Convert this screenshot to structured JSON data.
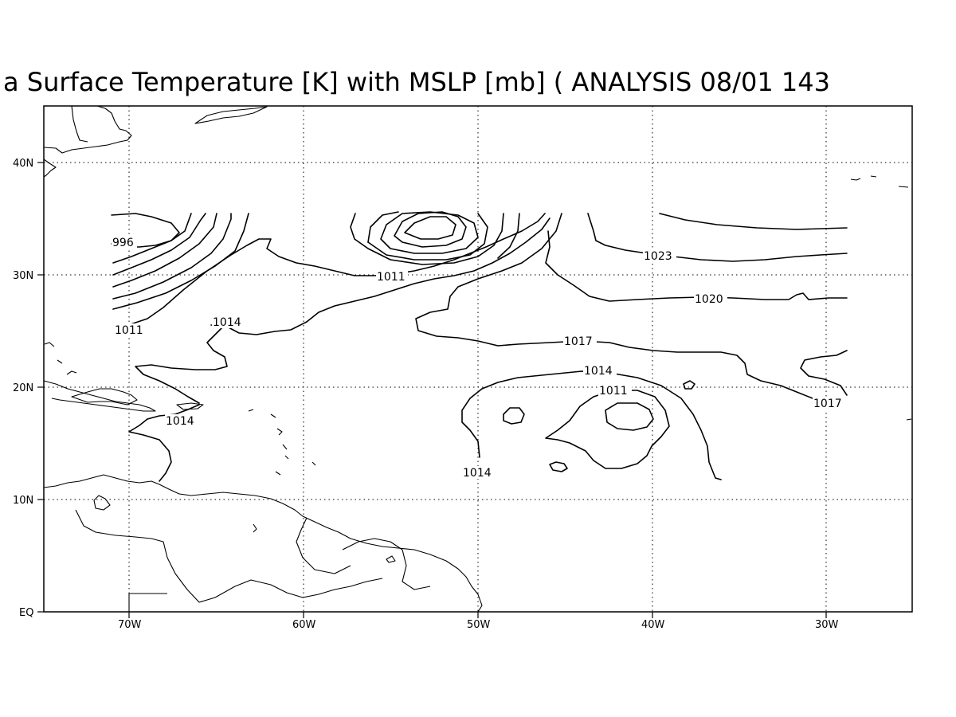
{
  "title": "a Surface Temperature [K] with MSLP [mb] ( ANALYSIS 08/01 143",
  "axes": {
    "x_ticks": [
      "70W",
      "60W",
      "50W",
      "40W",
      "30W"
    ],
    "y_ticks": [
      "EQ",
      "10N",
      "20N",
      "30N",
      "40N"
    ]
  },
  "contour_labels": [
    {
      "id": "996",
      "text": "996"
    },
    {
      "id": "1011a",
      "text": "1011"
    },
    {
      "id": "1011b",
      "text": "1011"
    },
    {
      "id": "1011c",
      "text": "1011"
    },
    {
      "id": "1014a",
      "text": "1014"
    },
    {
      "id": "1014b",
      "text": "1014"
    },
    {
      "id": "1014c",
      "text": "1014"
    },
    {
      "id": "1014d",
      "text": "1014"
    },
    {
      "id": "1017a",
      "text": "1017"
    },
    {
      "id": "1017b",
      "text": "1017"
    },
    {
      "id": "1020",
      "text": "1020"
    },
    {
      "id": "1023",
      "text": "1023"
    }
  ]
}
